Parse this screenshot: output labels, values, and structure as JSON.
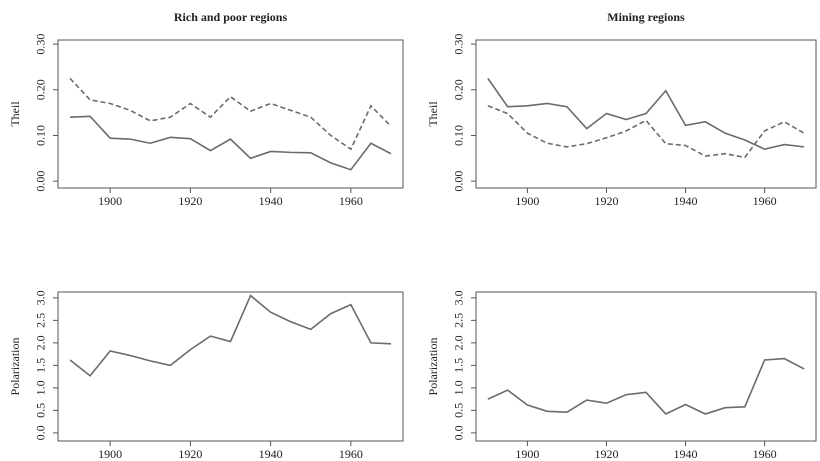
{
  "chart_data": [
    {
      "type": "line",
      "title": "Rich and poor regions",
      "ylabel": "Theil",
      "x": [
        1890,
        1895,
        1900,
        1905,
        1910,
        1915,
        1920,
        1925,
        1930,
        1935,
        1940,
        1945,
        1950,
        1955,
        1960,
        1965,
        1970
      ],
      "series": [
        {
          "color": "#6b6b6b",
          "line_style": "solid",
          "values": [
            0.14,
            0.142,
            0.094,
            0.092,
            0.083,
            0.096,
            0.093,
            0.067,
            0.092,
            0.05,
            0.065,
            0.063,
            0.062,
            0.04,
            0.025,
            0.083,
            0.06
          ]
        },
        {
          "color": "#6b6b6b",
          "line_style": "dashed",
          "values": [
            0.225,
            0.178,
            0.17,
            0.155,
            0.132,
            0.14,
            0.17,
            0.14,
            0.185,
            0.153,
            0.17,
            0.155,
            0.14,
            0.1,
            0.07,
            0.165,
            0.12
          ]
        }
      ],
      "xlim": [
        1887,
        1973
      ],
      "xticks": [
        1900,
        1920,
        1940,
        1960
      ],
      "ylim": [
        -0.015,
        0.309
      ],
      "yticks": [
        {
          "value": 0,
          "label": "0.00"
        },
        {
          "value": 0.1,
          "label": "0.10"
        },
        {
          "value": 0.2,
          "label": "0.20"
        },
        {
          "value": 0.3,
          "label": "0.30"
        }
      ]
    },
    {
      "type": "line",
      "title": "Mining regions",
      "ylabel": "Theil",
      "x": [
        1890,
        1895,
        1900,
        1905,
        1910,
        1915,
        1920,
        1925,
        1930,
        1935,
        1940,
        1945,
        1950,
        1955,
        1960,
        1965,
        1970
      ],
      "series": [
        {
          "color": "#6b6b6b",
          "line_style": "solid",
          "values": [
            0.225,
            0.163,
            0.165,
            0.17,
            0.163,
            0.115,
            0.148,
            0.135,
            0.148,
            0.198,
            0.122,
            0.13,
            0.105,
            0.09,
            0.07,
            0.08,
            0.075
          ]
        },
        {
          "color": "#6b6b6b",
          "line_style": "dashed",
          "values": [
            0.165,
            0.148,
            0.105,
            0.083,
            0.075,
            0.082,
            0.095,
            0.11,
            0.133,
            0.082,
            0.078,
            0.055,
            0.06,
            0.052,
            0.11,
            0.13,
            0.105
          ]
        }
      ],
      "xlim": [
        1887,
        1973
      ],
      "xticks": [
        1900,
        1920,
        1940,
        1960
      ],
      "ylim": [
        -0.015,
        0.309
      ],
      "yticks": [
        {
          "value": 0,
          "label": "0.00"
        },
        {
          "value": 0.1,
          "label": "0.10"
        },
        {
          "value": 0.2,
          "label": "0.20"
        },
        {
          "value": 0.3,
          "label": "0.30"
        }
      ]
    },
    {
      "type": "line",
      "ylabel": "Polarization",
      "x": [
        1890,
        1895,
        1900,
        1905,
        1910,
        1915,
        1920,
        1925,
        1930,
        1935,
        1940,
        1945,
        1950,
        1955,
        1960,
        1965,
        1970
      ],
      "series": [
        {
          "color": "#6b6b6b",
          "line_style": "solid",
          "values": [
            1.62,
            1.27,
            1.82,
            1.72,
            1.6,
            1.5,
            1.85,
            2.15,
            2.03,
            3.05,
            2.68,
            2.47,
            2.3,
            2.65,
            2.85,
            2.0,
            1.98
          ]
        }
      ],
      "xlim": [
        1887,
        1973
      ],
      "xticks": [
        1900,
        1920,
        1940,
        1960
      ],
      "ylim": [
        -0.18,
        3.13
      ],
      "yticks": [
        {
          "value": 0,
          "label": "0.0"
        },
        0.5,
        {
          "value": 1,
          "label": "1.0"
        },
        1.5,
        {
          "value": 2,
          "label": "2.0"
        },
        2.5,
        {
          "value": 3,
          "label": "3.0"
        }
      ]
    },
    {
      "type": "line",
      "ylabel": "Polarization",
      "x": [
        1890,
        1895,
        1900,
        1905,
        1910,
        1915,
        1920,
        1925,
        1930,
        1935,
        1940,
        1945,
        1950,
        1955,
        1960,
        1965,
        1970
      ],
      "series": [
        {
          "color": "#6b6b6b",
          "line_style": "solid",
          "values": [
            0.75,
            0.95,
            0.62,
            0.48,
            0.46,
            0.73,
            0.66,
            0.85,
            0.9,
            0.42,
            0.63,
            0.42,
            0.56,
            0.58,
            1.62,
            1.65,
            1.42
          ]
        }
      ],
      "xlim": [
        1887,
        1973
      ],
      "xticks": [
        1900,
        1920,
        1940,
        1960
      ],
      "ylim": [
        -0.18,
        3.13
      ],
      "yticks": [
        {
          "value": 0,
          "label": "0.0"
        },
        0.5,
        {
          "value": 1,
          "label": "1.0"
        },
        1.5,
        {
          "value": 2,
          "label": "2.0"
        },
        2.5,
        {
          "value": 3,
          "label": "3.0"
        }
      ]
    }
  ]
}
